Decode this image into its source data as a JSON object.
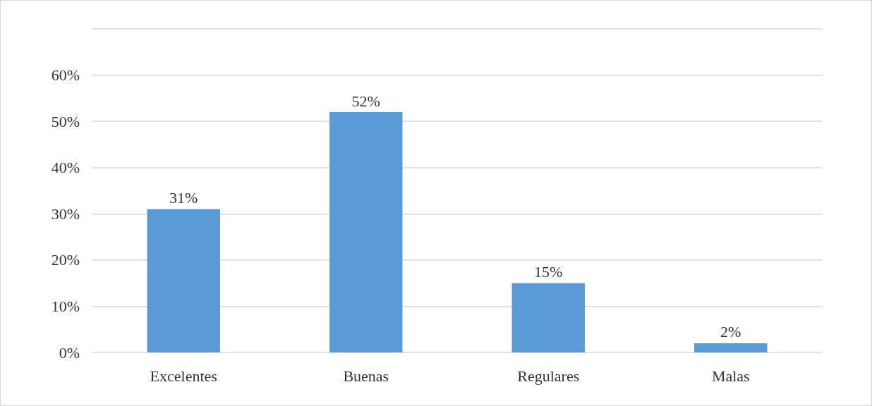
{
  "chart_data": {
    "type": "bar",
    "categories": [
      "Excelentes",
      "Buenas",
      "Regulares",
      "Malas"
    ],
    "values": [
      31,
      52,
      15,
      2
    ],
    "value_labels": [
      "31%",
      "52%",
      "15%",
      "2%"
    ],
    "color": "#5b9bd5",
    "ylim": [
      0,
      70
    ],
    "yticks": [
      {
        "value": 0,
        "label": "0%"
      },
      {
        "value": 10,
        "label": "10%"
      },
      {
        "value": 20,
        "label": "20%"
      },
      {
        "value": 30,
        "label": "30%"
      },
      {
        "value": 40,
        "label": "40%"
      },
      {
        "value": 50,
        "label": "50%"
      },
      {
        "value": 60,
        "label": "60%"
      },
      {
        "value": 70,
        "label": null
      }
    ],
    "grid": "y"
  }
}
